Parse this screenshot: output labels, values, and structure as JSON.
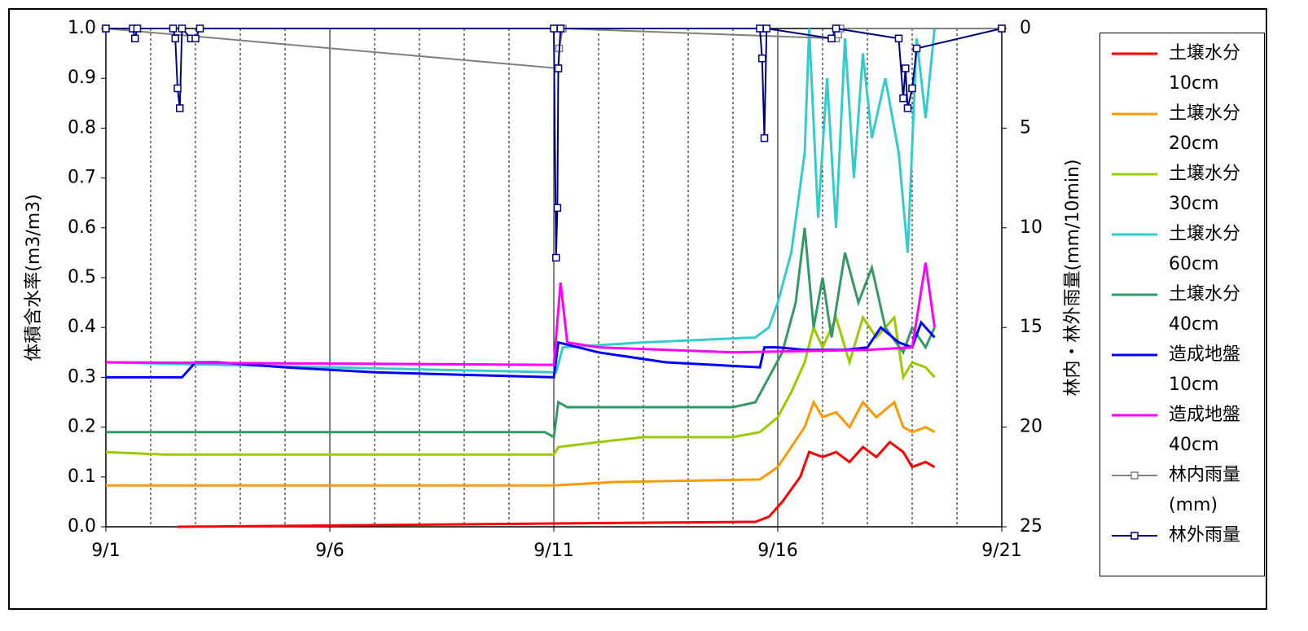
{
  "chart_data": {
    "type": "line",
    "y_label": "体積含水率(m3/m3)",
    "y2_label": "林内・林外雨量(mm/10min)",
    "xlim": [
      1,
      21
    ],
    "xticks": [
      {
        "value": 1,
        "label": "9/1"
      },
      {
        "value": 6,
        "label": "9/6"
      },
      {
        "value": 11,
        "label": "9/11"
      },
      {
        "value": 16,
        "label": "9/16"
      },
      {
        "value": 21,
        "label": "9/21"
      }
    ],
    "minor_xticks": [
      2,
      3,
      4,
      5,
      7,
      8,
      9,
      10,
      12,
      13,
      14,
      15,
      17,
      18,
      19,
      20
    ],
    "ylim": [
      0,
      1
    ],
    "yticks": [
      {
        "value": 0,
        "label": "0.0"
      },
      0.1,
      0.2,
      0.3,
      0.4,
      0.5,
      0.6,
      0.7,
      0.8,
      0.9,
      {
        "value": 1,
        "label": "1.0"
      }
    ],
    "y2lim": [
      25,
      0
    ],
    "y2ticks": [
      0,
      5,
      10,
      15,
      20,
      25
    ],
    "grid": true,
    "legend": "right",
    "series": [
      {
        "name": "土壌水分\n10cm",
        "color": "#ff0000",
        "x": [
          2.6,
          15.5,
          15.8,
          16.1,
          16.5,
          16.7,
          17,
          17.3,
          17.6,
          17.9,
          18.2,
          18.5,
          18.8,
          19,
          19.3,
          19.5
        ],
        "values": [
          0,
          0.01,
          0.02,
          0.05,
          0.1,
          0.15,
          0.14,
          0.15,
          0.13,
          0.16,
          0.14,
          0.17,
          0.15,
          0.12,
          0.13,
          0.12
        ]
      },
      {
        "name": "土壌水分\n20cm",
        "color": "#ff9900",
        "x": [
          1,
          11,
          12.4,
          15.6,
          16,
          16.3,
          16.6,
          16.8,
          17,
          17.3,
          17.6,
          17.9,
          18.2,
          18.6,
          18.8,
          19,
          19.3,
          19.5
        ],
        "values": [
          0.083,
          0.083,
          0.09,
          0.095,
          0.12,
          0.16,
          0.2,
          0.25,
          0.22,
          0.23,
          0.2,
          0.25,
          0.22,
          0.25,
          0.2,
          0.19,
          0.2,
          0.19
        ]
      },
      {
        "name": "土壌水分\n30cm",
        "color": "#99cc00",
        "x": [
          1,
          2.3,
          11,
          11.1,
          12,
          13,
          15,
          15.6,
          16,
          16.3,
          16.6,
          16.8,
          17,
          17.3,
          17.6,
          17.9,
          18.2,
          18.6,
          18.8,
          19,
          19.3,
          19.5
        ],
        "values": [
          0.15,
          0.145,
          0.145,
          0.16,
          0.17,
          0.18,
          0.18,
          0.19,
          0.22,
          0.27,
          0.33,
          0.4,
          0.36,
          0.42,
          0.33,
          0.42,
          0.38,
          0.42,
          0.3,
          0.33,
          0.32,
          0.3
        ]
      },
      {
        "name": "土壌水分\n60cm",
        "color": "#33cccc",
        "x": [
          1,
          11,
          11.05,
          11.2,
          13,
          15.5,
          15.8,
          16,
          16.3,
          16.6,
          16.7,
          16.9,
          17.1,
          17.3,
          17.5,
          17.7,
          17.9,
          18.1,
          18.4,
          18.7,
          18.9,
          19.1,
          19.3,
          19.5
        ],
        "values": [
          0.33,
          0.31,
          0.31,
          0.36,
          0.37,
          0.38,
          0.4,
          0.45,
          0.55,
          0.75,
          1.0,
          0.62,
          0.9,
          0.6,
          0.98,
          0.7,
          0.95,
          0.78,
          0.9,
          0.75,
          0.55,
          0.98,
          0.82,
          1.0
        ]
      },
      {
        "name": "土壌水分\n40cm",
        "color": "#339966",
        "x": [
          1,
          10.8,
          11,
          11.1,
          11.3,
          13,
          15,
          15.5,
          15.8,
          16.1,
          16.4,
          16.6,
          16.8,
          17,
          17.2,
          17.5,
          17.8,
          18.1,
          18.4,
          18.8,
          19,
          19.3,
          19.5
        ],
        "values": [
          0.19,
          0.19,
          0.18,
          0.25,
          0.24,
          0.24,
          0.24,
          0.25,
          0.3,
          0.35,
          0.45,
          0.6,
          0.4,
          0.5,
          0.38,
          0.55,
          0.45,
          0.52,
          0.4,
          0.35,
          0.4,
          0.36,
          0.4
        ]
      },
      {
        "name": "造成地盤\n10cm",
        "color": "#0000ff",
        "x": [
          1,
          2.7,
          3,
          3.5,
          5,
          7,
          9,
          11,
          11.1,
          12,
          13.5,
          15.6,
          15.7,
          16,
          16.6,
          17.5,
          18,
          18.3,
          18.7,
          19,
          19.2,
          19.5
        ],
        "values": [
          0.3,
          0.3,
          0.33,
          0.33,
          0.32,
          0.31,
          0.305,
          0.3,
          0.37,
          0.35,
          0.33,
          0.32,
          0.36,
          0.36,
          0.355,
          0.355,
          0.36,
          0.4,
          0.37,
          0.36,
          0.41,
          0.38
        ]
      },
      {
        "name": "造成地盤\n40cm",
        "color": "#ff00ff",
        "x": [
          1,
          11,
          11.15,
          11.3,
          12,
          15,
          18,
          19,
          19.3,
          19.5
        ],
        "values": [
          0.33,
          0.325,
          0.49,
          0.37,
          0.36,
          0.35,
          0.355,
          0.36,
          0.53,
          0.4
        ]
      },
      {
        "name": "林内雨量\n(mm)",
        "color": "#808080",
        "axis": "y2",
        "marker": "square",
        "x": [
          1,
          11.1,
          11.12,
          11.2,
          17.3,
          17.35,
          17.4,
          21
        ],
        "values": [
          0,
          2,
          1,
          0,
          0.5,
          0.3,
          0,
          0
        ]
      },
      {
        "name": "林外雨量",
        "color": "#000080",
        "axis": "y2",
        "marker": "square",
        "x": [
          1,
          1.6,
          1.65,
          1.7,
          2.5,
          2.55,
          2.6,
          2.65,
          2.7,
          2.9,
          3,
          3.1,
          11,
          11.05,
          11.08,
          11.1,
          11.15,
          15.6,
          15.65,
          15.7,
          15.75,
          17.2,
          17.3,
          18.7,
          18.8,
          18.85,
          18.9,
          19,
          19.1,
          21
        ],
        "values": [
          0,
          0,
          0.5,
          0,
          0,
          0.5,
          3,
          4,
          0,
          0.5,
          0.5,
          0,
          0,
          11.5,
          9,
          2,
          0,
          0,
          1.5,
          5.5,
          0,
          0.5,
          0,
          0.5,
          3.5,
          2,
          4,
          3,
          1,
          0
        ]
      }
    ]
  }
}
